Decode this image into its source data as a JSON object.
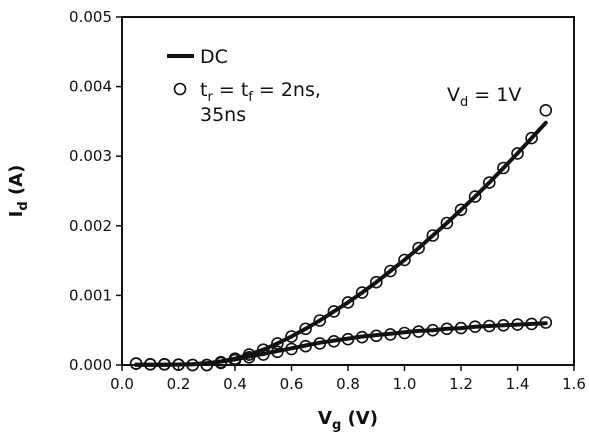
{
  "chart_data": {
    "type": "line",
    "xlabel": {
      "main": "V",
      "sub": "g",
      "unit": " (V)"
    },
    "ylabel": {
      "main": "I",
      "sub": "d",
      "unit": " (A)"
    },
    "xlim": [
      0.0,
      1.6
    ],
    "ylim": [
      0.0,
      0.005
    ],
    "x_ticks": [
      0.0,
      0.2,
      0.4,
      0.6,
      0.8,
      1.0,
      1.2,
      1.4,
      1.6
    ],
    "x_tick_labels": [
      "0.0",
      "0.2",
      "0.4",
      "0.6",
      "0.8",
      "1.0",
      "1.2",
      "1.4",
      "1.6"
    ],
    "y_ticks": [
      0.0,
      0.001,
      0.002,
      0.003,
      0.004,
      0.005
    ],
    "y_tick_labels": [
      "0.000",
      "0.001",
      "0.002",
      "0.003",
      "0.004",
      "0.005"
    ],
    "grid": false,
    "legend": {
      "placement": "top-left",
      "dc_label": "DC",
      "pulse_label": {
        "t1": "t",
        "t1_sub": "r",
        "eq1": " = ",
        "t2": "t",
        "t2_sub": "f",
        "rest": " = 2ns,",
        "line2": "35ns"
      }
    },
    "annotation": {
      "main": "V",
      "sub": "d",
      "rest": " = 1V"
    },
    "series": [
      {
        "style": "solid-line",
        "points": [
          [
            0.05,
            3e-06
          ],
          [
            0.1,
            4e-06
          ],
          [
            0.15,
            5e-06
          ],
          [
            0.2,
            7e-06
          ],
          [
            0.25,
            1.2e-05
          ],
          [
            0.3,
            2.5e-05
          ],
          [
            0.35,
            5e-05
          ],
          [
            0.4,
            9e-05
          ],
          [
            0.45,
            0.00015
          ],
          [
            0.5,
            0.00022
          ],
          [
            0.55,
            0.00031
          ],
          [
            0.6,
            0.00041
          ],
          [
            0.65,
            0.00052
          ],
          [
            0.7,
            0.00064
          ],
          [
            0.75,
            0.00077
          ],
          [
            0.8,
            0.0009
          ],
          [
            0.85,
            0.00104
          ],
          [
            0.9,
            0.00119
          ],
          [
            0.95,
            0.00135
          ],
          [
            1.0,
            0.00151
          ],
          [
            1.05,
            0.00168
          ],
          [
            1.1,
            0.00186
          ],
          [
            1.15,
            0.00204
          ],
          [
            1.2,
            0.00223
          ],
          [
            1.25,
            0.00242
          ],
          [
            1.3,
            0.00262
          ],
          [
            1.35,
            0.00283
          ],
          [
            1.4,
            0.00304
          ],
          [
            1.45,
            0.00326
          ],
          [
            1.5,
            0.00348
          ]
        ]
      },
      {
        "style": "solid-line",
        "points": [
          [
            0.05,
            3e-06
          ],
          [
            0.1,
            4e-06
          ],
          [
            0.15,
            5e-06
          ],
          [
            0.2,
            7e-06
          ],
          [
            0.25,
            1.2e-05
          ],
          [
            0.3,
            2.5e-05
          ],
          [
            0.35,
            5e-05
          ],
          [
            0.4,
            8e-05
          ],
          [
            0.45,
            0.00012
          ],
          [
            0.5,
            0.00016
          ],
          [
            0.55,
            0.0002
          ],
          [
            0.6,
            0.00024
          ],
          [
            0.65,
            0.00028
          ],
          [
            0.7,
            0.00032
          ],
          [
            0.75,
            0.00035
          ],
          [
            0.8,
            0.00038
          ],
          [
            0.85,
            0.00041
          ],
          [
            0.9,
            0.00043
          ],
          [
            0.95,
            0.00045
          ],
          [
            1.0,
            0.00047
          ],
          [
            1.05,
            0.00049
          ],
          [
            1.1,
            0.0005
          ],
          [
            1.15,
            0.00052
          ],
          [
            1.2,
            0.00053
          ],
          [
            1.25,
            0.00055
          ],
          [
            1.3,
            0.00056
          ],
          [
            1.35,
            0.00057
          ],
          [
            1.4,
            0.00058
          ],
          [
            1.45,
            0.00059
          ],
          [
            1.5,
            0.0006
          ]
        ]
      },
      {
        "style": "open-circle",
        "points": [
          [
            0.05,
            2e-05
          ],
          [
            0.1,
            1e-05
          ],
          [
            0.15,
            1e-05
          ],
          [
            0.2,
            5e-06
          ],
          [
            0.25,
            0.0
          ],
          [
            0.3,
            0.0
          ],
          [
            0.35,
            4e-05
          ],
          [
            0.4,
            9e-05
          ],
          [
            0.45,
            0.00015
          ],
          [
            0.5,
            0.00022
          ],
          [
            0.55,
            0.00031
          ],
          [
            0.6,
            0.00041
          ],
          [
            0.65,
            0.00052
          ],
          [
            0.7,
            0.00064
          ],
          [
            0.75,
            0.00077
          ],
          [
            0.8,
            0.0009
          ],
          [
            0.85,
            0.00104
          ],
          [
            0.9,
            0.00119
          ],
          [
            0.95,
            0.00135
          ],
          [
            1.0,
            0.00151
          ],
          [
            1.05,
            0.00168
          ],
          [
            1.1,
            0.00186
          ],
          [
            1.15,
            0.00204
          ],
          [
            1.2,
            0.00223
          ],
          [
            1.25,
            0.00242
          ],
          [
            1.3,
            0.00262
          ],
          [
            1.35,
            0.00283
          ],
          [
            1.4,
            0.00304
          ],
          [
            1.45,
            0.00326
          ],
          [
            1.5,
            0.00366
          ]
        ]
      },
      {
        "style": "open-circle",
        "points": [
          [
            0.05,
            2e-05
          ],
          [
            0.1,
            1e-05
          ],
          [
            0.15,
            1e-05
          ],
          [
            0.2,
            5e-06
          ],
          [
            0.25,
            0.0
          ],
          [
            0.3,
            0.0
          ],
          [
            0.35,
            3e-05
          ],
          [
            0.4,
            7e-05
          ],
          [
            0.45,
            0.00011
          ],
          [
            0.5,
            0.00015
          ],
          [
            0.55,
            0.00019
          ],
          [
            0.6,
            0.00023
          ],
          [
            0.65,
            0.00027
          ],
          [
            0.7,
            0.00031
          ],
          [
            0.75,
            0.00034
          ],
          [
            0.8,
            0.00037
          ],
          [
            0.85,
            0.0004
          ],
          [
            0.9,
            0.00042
          ],
          [
            0.95,
            0.00044
          ],
          [
            1.0,
            0.00046
          ],
          [
            1.05,
            0.00048
          ],
          [
            1.1,
            0.0005
          ],
          [
            1.15,
            0.00052
          ],
          [
            1.2,
            0.00053
          ],
          [
            1.25,
            0.00055
          ],
          [
            1.3,
            0.00056
          ],
          [
            1.35,
            0.00057
          ],
          [
            1.4,
            0.00058
          ],
          [
            1.45,
            0.00059
          ],
          [
            1.5,
            0.00061
          ]
        ]
      }
    ]
  }
}
